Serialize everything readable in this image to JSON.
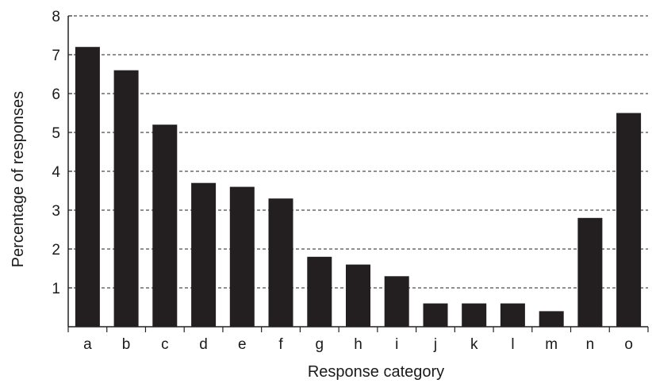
{
  "chart_data": {
    "type": "bar",
    "categories": [
      "a",
      "b",
      "c",
      "d",
      "e",
      "f",
      "g",
      "h",
      "i",
      "j",
      "k",
      "l",
      "m",
      "n",
      "o"
    ],
    "values": [
      7.2,
      6.6,
      5.2,
      3.7,
      3.6,
      3.3,
      1.8,
      1.6,
      1.3,
      0.6,
      0.6,
      0.6,
      0.4,
      2.8,
      5.5
    ],
    "xlabel": "Response category",
    "ylabel": "Percentage of responses",
    "ylim": [
      0,
      8
    ],
    "yticks": [
      "1",
      "2",
      "3",
      "4",
      "5",
      "6",
      "7",
      "8"
    ],
    "grid": true,
    "colors": {
      "bar": "#231f20"
    }
  }
}
